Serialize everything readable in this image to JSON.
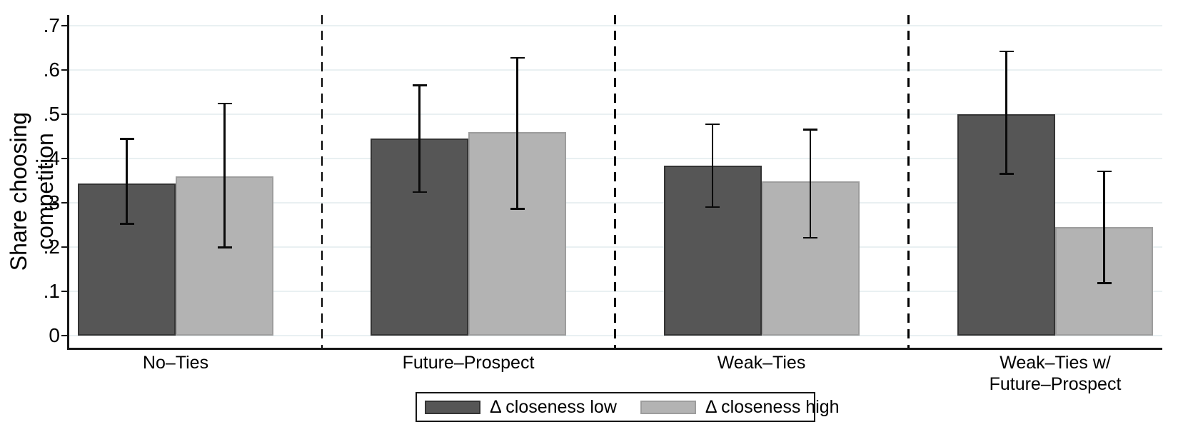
{
  "chart_data": {
    "type": "bar",
    "title": "",
    "ylabel": "Share choosing competition",
    "xlabel": "",
    "ylim": [
      0,
      0.7
    ],
    "ytick_values": [
      0,
      0.1,
      0.2,
      0.3,
      0.4,
      0.5,
      0.6,
      0.7
    ],
    "ytick_labels": [
      "0",
      ".1",
      ".2",
      ".3",
      ".4",
      ".5",
      ".6",
      ".7"
    ],
    "grid": "horizontal",
    "error_bars": true,
    "legend_position": "bottom-center",
    "group_separators": "vertical dashed lines between category groups",
    "categories": [
      "No–Ties",
      "Future–Prospect",
      "Weak–Ties",
      "Weak–Ties w/\nFuture–Prospect"
    ],
    "series": [
      {
        "name": "Δ closeness low",
        "fill_color": "#565656",
        "border_color": "#343434",
        "values": [
          0.343,
          0.445,
          0.384,
          0.5
        ],
        "ci_low": [
          0.253,
          0.325,
          0.291,
          0.366
        ],
        "ci_high": [
          0.445,
          0.566,
          0.478,
          0.642
        ]
      },
      {
        "name": "Δ closeness high",
        "fill_color": "#b3b3b3",
        "border_color": "#9d9d9d",
        "values": [
          0.359,
          0.46,
          0.349,
          0.245
        ],
        "ci_low": [
          0.2,
          0.287,
          0.221,
          0.119
        ],
        "ci_high": [
          0.525,
          0.628,
          0.466,
          0.371
        ]
      }
    ]
  },
  "colors": {
    "background": "#ffffff",
    "gridline": "#e9f0f2",
    "axis": "#161616",
    "error_bar": "#0a0a0a",
    "separator": "#000000",
    "text": "#000000"
  }
}
